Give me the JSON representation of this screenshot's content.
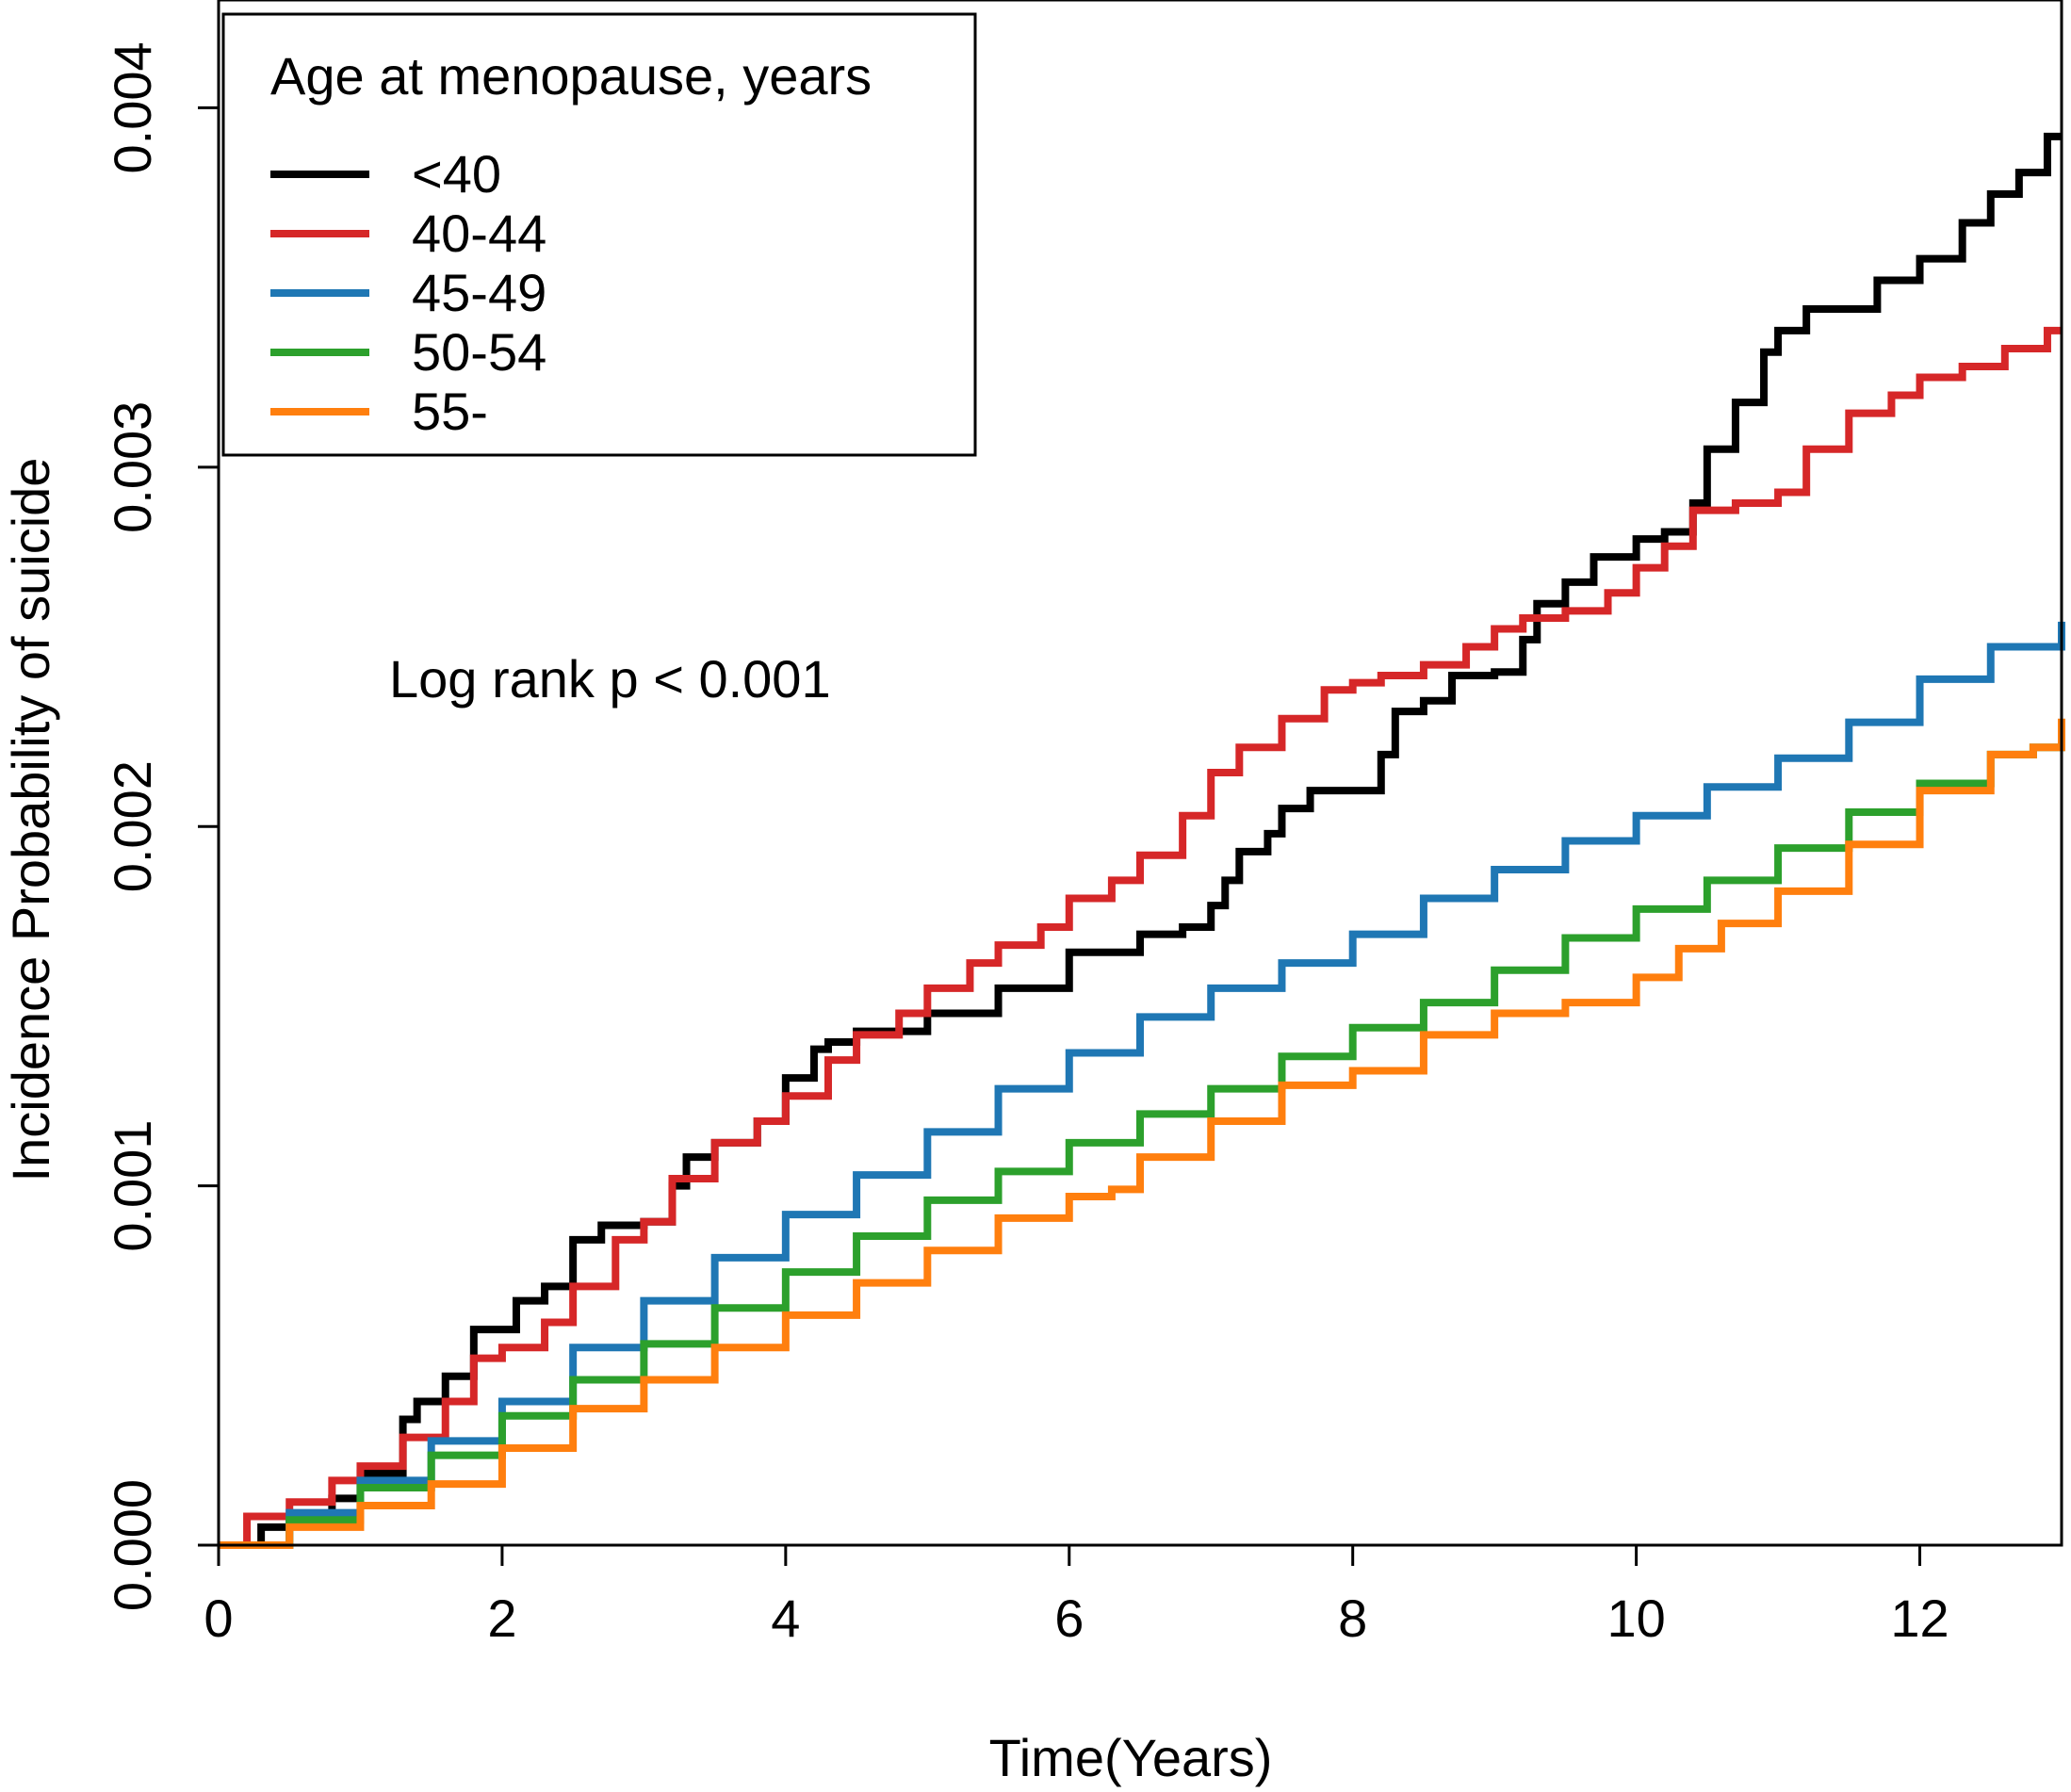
{
  "chart_data": {
    "type": "line",
    "step": true,
    "xlabel": "Time(Years)",
    "ylabel": "Incidence Probability of suicide",
    "xlim": [
      0,
      13
    ],
    "ylim": [
      0,
      0.0043
    ],
    "xticks": [
      0,
      2,
      4,
      6,
      8,
      10,
      12
    ],
    "xtick_labels": [
      "0",
      "2",
      "4",
      "6",
      "8",
      "10",
      "12"
    ],
    "yticks": [
      0,
      0.001,
      0.002,
      0.003,
      0.004
    ],
    "ytick_labels": [
      "0.000",
      "0.001",
      "0.002",
      "0.003",
      "0.004"
    ],
    "legend": {
      "title": "Age at menopause, years",
      "position": "top-left"
    },
    "annotation": "Log rank p < 0.001",
    "series": [
      {
        "name": "<40",
        "color": "#000000",
        "x": [
          0,
          0.3,
          0.5,
          0.8,
          1.0,
          1.3,
          1.4,
          1.6,
          1.8,
          2.1,
          2.3,
          2.5,
          2.7,
          3.0,
          3.2,
          3.3,
          3.5,
          3.8,
          4.0,
          4.2,
          4.3,
          4.5,
          4.8,
          5.0,
          5.1,
          5.5,
          6.0,
          6.3,
          6.5,
          6.8,
          7.0,
          7.1,
          7.2,
          7.4,
          7.5,
          7.7,
          8.0,
          8.2,
          8.3,
          8.5,
          8.7,
          9.0,
          9.2,
          9.3,
          9.5,
          9.7,
          10.0,
          10.2,
          10.4,
          10.5,
          10.7,
          10.9,
          11.0,
          11.2,
          11.5,
          11.7,
          12.0,
          12.3,
          12.5,
          12.7,
          12.9,
          13.0
        ],
        "y": [
          0,
          5e-05,
          8e-05,
          0.00013,
          0.0002,
          0.00035,
          0.0004,
          0.00047,
          0.0006,
          0.00068,
          0.00072,
          0.00085,
          0.00089,
          0.0009,
          0.001,
          0.00108,
          0.00112,
          0.00118,
          0.0013,
          0.00138,
          0.0014,
          0.00143,
          0.00143,
          0.00148,
          0.00148,
          0.00155,
          0.00165,
          0.00165,
          0.0017,
          0.00172,
          0.00178,
          0.00185,
          0.00193,
          0.00198,
          0.00205,
          0.0021,
          0.0021,
          0.0022,
          0.00232,
          0.00235,
          0.00242,
          0.00243,
          0.00252,
          0.00262,
          0.00268,
          0.00275,
          0.0028,
          0.00282,
          0.0029,
          0.00305,
          0.00318,
          0.00332,
          0.00338,
          0.00344,
          0.00344,
          0.00352,
          0.00358,
          0.00368,
          0.00376,
          0.00382,
          0.00392,
          0.00392
        ]
      },
      {
        "name": "40-44",
        "color": "#d62728",
        "x": [
          0,
          0.2,
          0.5,
          0.8,
          1.0,
          1.3,
          1.6,
          1.8,
          2.0,
          2.3,
          2.5,
          2.8,
          3.0,
          3.2,
          3.5,
          3.8,
          4.0,
          4.3,
          4.5,
          4.8,
          5.0,
          5.3,
          5.5,
          5.8,
          6.0,
          6.3,
          6.5,
          6.8,
          7.0,
          7.2,
          7.5,
          7.8,
          8.0,
          8.2,
          8.5,
          8.8,
          9.0,
          9.2,
          9.5,
          9.8,
          10.0,
          10.2,
          10.4,
          10.7,
          11.0,
          11.2,
          11.5,
          11.8,
          12.0,
          12.3,
          12.6,
          12.9,
          13.0
        ],
        "y": [
          0,
          8e-05,
          0.00012,
          0.00018,
          0.00022,
          0.0003,
          0.0004,
          0.00052,
          0.00055,
          0.00062,
          0.00072,
          0.00085,
          0.0009,
          0.00102,
          0.00112,
          0.00118,
          0.00125,
          0.00135,
          0.00142,
          0.00148,
          0.00155,
          0.00162,
          0.00167,
          0.00172,
          0.0018,
          0.00185,
          0.00192,
          0.00203,
          0.00215,
          0.00222,
          0.0023,
          0.00238,
          0.0024,
          0.00242,
          0.00245,
          0.0025,
          0.00255,
          0.00258,
          0.0026,
          0.00265,
          0.00272,
          0.00278,
          0.00288,
          0.0029,
          0.00293,
          0.00305,
          0.00315,
          0.0032,
          0.00325,
          0.00328,
          0.00333,
          0.00338,
          0.00338
        ]
      },
      {
        "name": "45-49",
        "color": "#1f77b4",
        "x": [
          0,
          0.5,
          1.0,
          1.5,
          2.0,
          2.5,
          3.0,
          3.5,
          4.0,
          4.5,
          5.0,
          5.5,
          6.0,
          6.5,
          7.0,
          7.5,
          8.0,
          8.5,
          9.0,
          9.5,
          10.0,
          10.5,
          11.0,
          11.5,
          12.0,
          12.5,
          13.0
        ],
        "y": [
          0,
          9e-05,
          0.00018,
          0.00029,
          0.0004,
          0.00055,
          0.00068,
          0.0008,
          0.00092,
          0.00103,
          0.00115,
          0.00127,
          0.00137,
          0.00147,
          0.00155,
          0.00162,
          0.0017,
          0.0018,
          0.00188,
          0.00196,
          0.00203,
          0.00211,
          0.00219,
          0.00229,
          0.00241,
          0.0025,
          0.00257
        ]
      },
      {
        "name": "50-54",
        "color": "#2ca02c",
        "x": [
          0,
          0.5,
          1.0,
          1.5,
          2.0,
          2.5,
          3.0,
          3.5,
          4.0,
          4.5,
          5.0,
          5.5,
          6.0,
          6.5,
          7.0,
          7.5,
          8.0,
          8.5,
          9.0,
          9.5,
          10.0,
          10.5,
          11.0,
          11.5,
          12.0,
          12.5,
          12.8,
          13.0
        ],
        "y": [
          0,
          7e-05,
          0.00016,
          0.00025,
          0.00036,
          0.00046,
          0.00056,
          0.00066,
          0.00076,
          0.00086,
          0.00096,
          0.00104,
          0.00112,
          0.0012,
          0.00127,
          0.00136,
          0.00144,
          0.00151,
          0.0016,
          0.00169,
          0.00177,
          0.00185,
          0.00194,
          0.00204,
          0.00212,
          0.0022,
          0.00222,
          0.00229
        ]
      },
      {
        "name": "55-",
        "color": "#ff7f0e",
        "x": [
          0,
          0.5,
          1.0,
          1.5,
          2.0,
          2.5,
          3.0,
          3.5,
          4.0,
          4.5,
          5.0,
          5.5,
          6.0,
          6.3,
          6.5,
          7.0,
          7.5,
          8.0,
          8.5,
          9.0,
          9.5,
          10.0,
          10.3,
          10.6,
          11.0,
          11.5,
          12.0,
          12.5,
          12.8,
          13.0
        ],
        "y": [
          0,
          5e-05,
          0.00011,
          0.00017,
          0.00027,
          0.00038,
          0.00046,
          0.00055,
          0.00064,
          0.00073,
          0.00082,
          0.00091,
          0.00097,
          0.00099,
          0.00108,
          0.00118,
          0.00128,
          0.00132,
          0.00142,
          0.00148,
          0.00151,
          0.00158,
          0.00166,
          0.00173,
          0.00182,
          0.00195,
          0.0021,
          0.0022,
          0.00222,
          0.0023
        ]
      }
    ]
  }
}
